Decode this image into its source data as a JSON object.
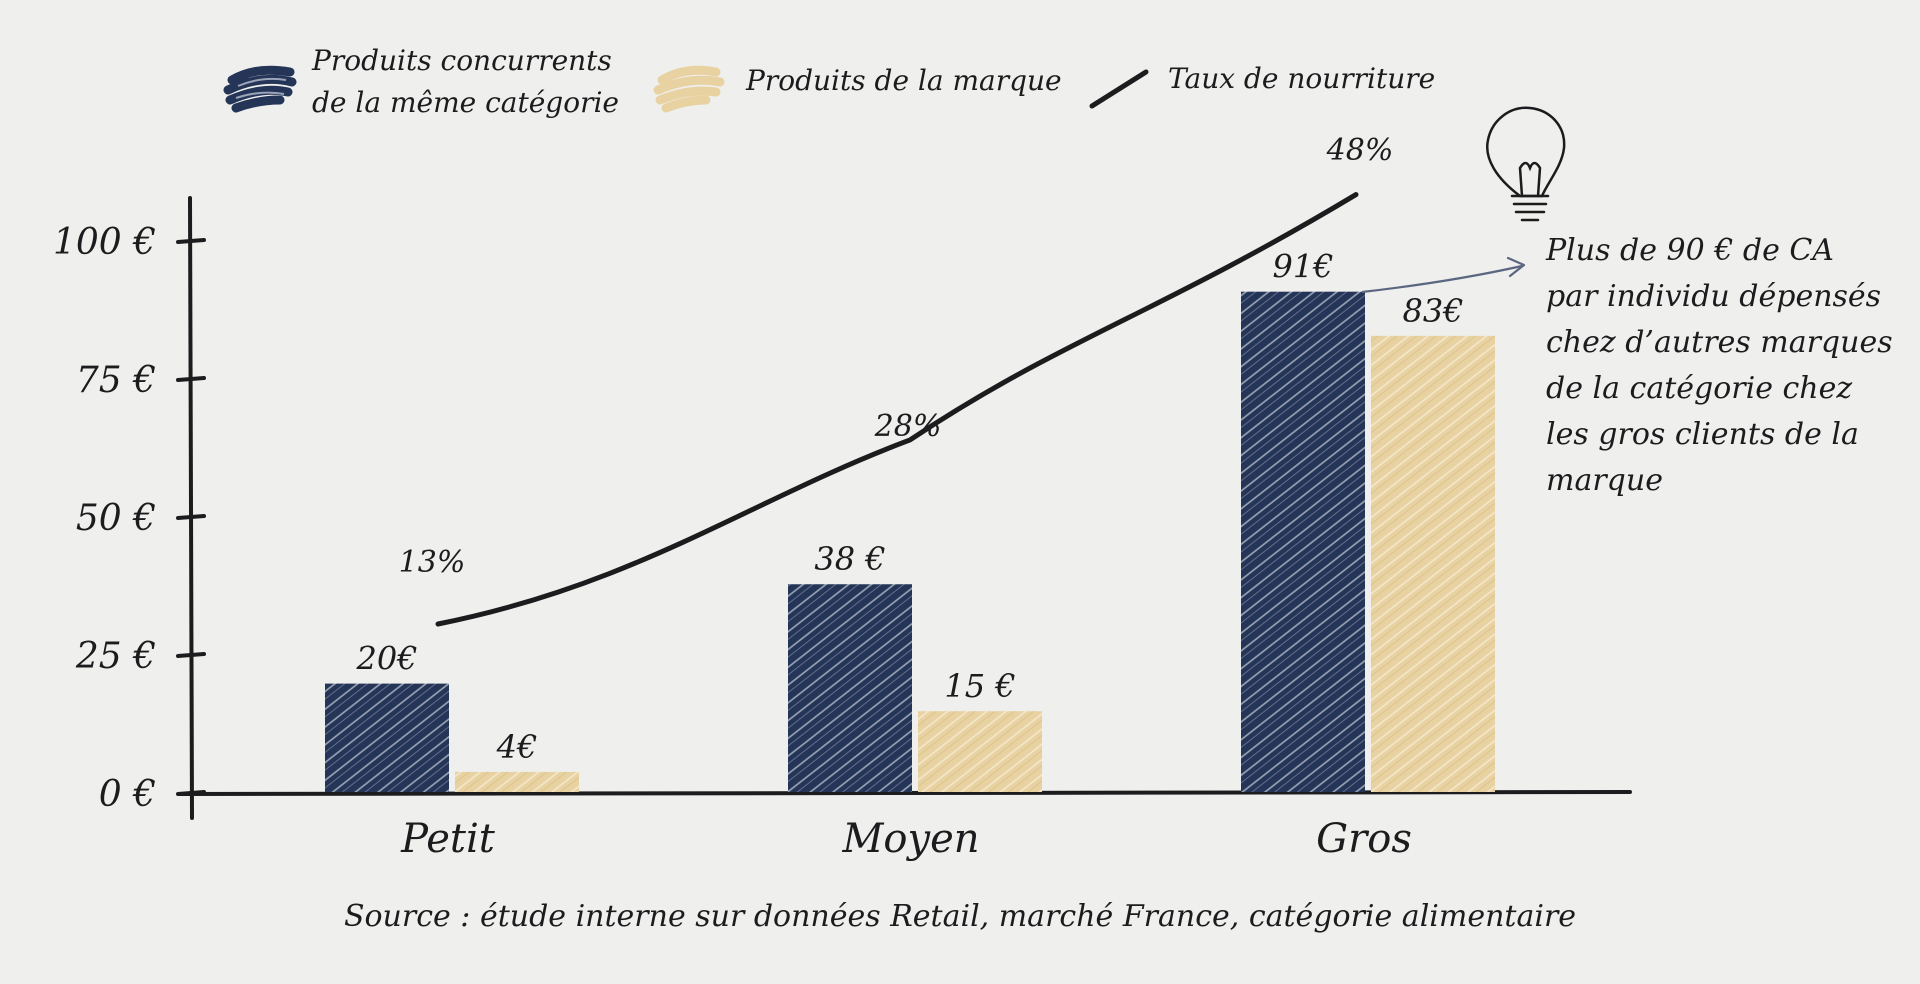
{
  "chart_data": {
    "type": "bar",
    "categories": [
      "Petit",
      "Moyen",
      "Gros"
    ],
    "series": [
      {
        "name": "Produits concurrents de la même catégorie",
        "legend_lines": [
          "Produits concurrents",
          "de la même catégorie"
        ],
        "values": [
          20,
          38,
          91
        ],
        "value_labels": [
          "20€",
          "38 €",
          "91€"
        ],
        "color": "#243557"
      },
      {
        "name": "Produits de la marque",
        "values": [
          4,
          15,
          83
        ],
        "value_labels": [
          "4€",
          "15 €",
          "83€"
        ],
        "color": "#e8d2a2"
      }
    ],
    "line_series": {
      "name": "Taux de nourriture",
      "values": [
        13,
        28,
        48
      ],
      "value_labels": [
        "13%",
        "28%",
        "48%"
      ],
      "color": "#1c1c1e"
    },
    "y_ticks": [
      "0 €",
      "25 €",
      "50 €",
      "75 €",
      "100 €"
    ],
    "y_tick_values": [
      0,
      25,
      50,
      75,
      100
    ],
    "ylim": [
      0,
      108
    ],
    "line_ylim": [
      0,
      55
    ],
    "annotation": {
      "lines": [
        "Plus de 90 € de CA",
        "par individu dépensés",
        "chez d’autres marques",
        "de la catégorie chez",
        "les gros clients de la",
        "marque"
      ],
      "icon": "lightbulb-icon"
    },
    "source": "Source : étude interne sur données Retail, marché France, catégorie alimentaire",
    "legend_position": "top",
    "grid": false
  }
}
